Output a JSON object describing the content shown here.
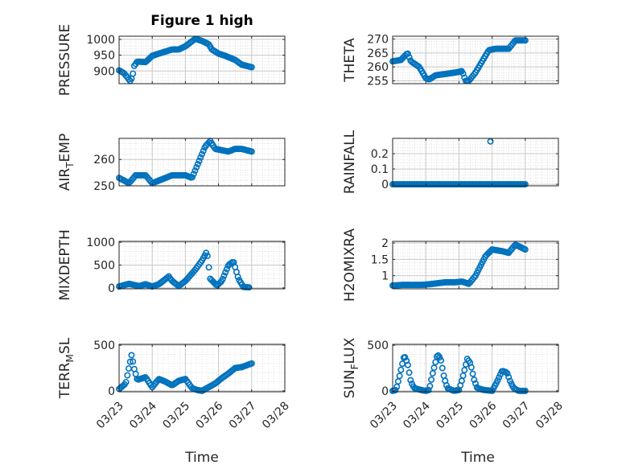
{
  "figure": {
    "title": "Figure 1 high",
    "xlabel": "Time"
  },
  "colors": {
    "marker": "#0072BD",
    "axis": "#262626",
    "grid": "#c8c8c8"
  },
  "chart_data": [
    {
      "type": "scatter",
      "ylabel": "PRESSURE",
      "ylabel_sub": null,
      "ylim": [
        860,
        1010
      ],
      "yticks": [
        900,
        950,
        1000
      ],
      "xlim": [
        0,
        5
      ],
      "xticks": [
        "03/23",
        "03/24",
        "03/25",
        "03/26",
        "03/27",
        "03/28"
      ],
      "show_xticklabels": false,
      "title": "Figure 1 high",
      "anchors": [
        [
          0,
          902
        ],
        [
          0.15,
          893
        ],
        [
          0.25,
          880
        ],
        [
          0.33,
          868
        ],
        [
          0.4,
          880
        ],
        [
          0.45,
          915
        ],
        [
          0.55,
          930
        ],
        [
          0.8,
          928
        ],
        [
          1.0,
          948
        ],
        [
          1.2,
          955
        ],
        [
          1.6,
          968
        ],
        [
          1.8,
          968
        ],
        [
          2.0,
          978
        ],
        [
          2.15,
          990
        ],
        [
          2.3,
          1002
        ],
        [
          2.5,
          995
        ],
        [
          2.7,
          985
        ],
        [
          2.8,
          968
        ],
        [
          3.0,
          955
        ],
        [
          3.2,
          948
        ],
        [
          3.5,
          935
        ],
        [
          3.7,
          920
        ],
        [
          4.0,
          912
        ]
      ]
    },
    {
      "type": "scatter",
      "ylabel": "THETA",
      "ylabel_sub": null,
      "ylim": [
        254,
        271
      ],
      "yticks": [
        255,
        260,
        265,
        270
      ],
      "xlim": [
        0,
        5
      ],
      "xticks": [
        "03/23",
        "03/24",
        "03/25",
        "03/26",
        "03/27",
        "03/28"
      ],
      "show_xticklabels": false,
      "anchors": [
        [
          0,
          262
        ],
        [
          0.25,
          262.5
        ],
        [
          0.45,
          265
        ],
        [
          0.55,
          262
        ],
        [
          0.8,
          260
        ],
        [
          1.0,
          256
        ],
        [
          1.1,
          255.5
        ],
        [
          1.3,
          257
        ],
        [
          1.6,
          257.5
        ],
        [
          1.9,
          258
        ],
        [
          2.1,
          258.5
        ],
        [
          2.2,
          255
        ],
        [
          2.3,
          255
        ],
        [
          2.5,
          258
        ],
        [
          2.7,
          262
        ],
        [
          2.9,
          266
        ],
        [
          3.1,
          266.5
        ],
        [
          3.4,
          266.5
        ],
        [
          3.5,
          266.5
        ],
        [
          3.7,
          269.5
        ],
        [
          4.0,
          269.5
        ]
      ]
    },
    {
      "type": "scatter",
      "ylabel": "AIR",
      "ylabel_sub": "T",
      "ylabel_suffix": "EMP",
      "ylim": [
        250,
        268
      ],
      "yticks": [
        250,
        260
      ],
      "xlim": [
        0,
        5
      ],
      "xticks": [
        "03/23",
        "03/24",
        "03/25",
        "03/26",
        "03/27",
        "03/28"
      ],
      "show_xticklabels": false,
      "anchors": [
        [
          0,
          253
        ],
        [
          0.3,
          251
        ],
        [
          0.5,
          254
        ],
        [
          0.8,
          254
        ],
        [
          1.0,
          251
        ],
        [
          1.2,
          252
        ],
        [
          1.6,
          254
        ],
        [
          2.0,
          254
        ],
        [
          2.2,
          253
        ],
        [
          2.4,
          259
        ],
        [
          2.6,
          265
        ],
        [
          2.75,
          267
        ],
        [
          2.9,
          264
        ],
        [
          3.3,
          263
        ],
        [
          3.5,
          264
        ],
        [
          3.7,
          264
        ],
        [
          4.0,
          263
        ]
      ]
    },
    {
      "type": "scatter",
      "ylabel": "RAINFALL",
      "ylabel_sub": null,
      "ylim": [
        -0.01,
        0.3
      ],
      "yticks": [
        0,
        0.1,
        0.2
      ],
      "xlim": [
        0,
        5
      ],
      "xticks": [
        "03/23",
        "03/24",
        "03/25",
        "03/26",
        "03/27",
        "03/28"
      ],
      "show_xticklabels": false,
      "anchors": [
        [
          0,
          0
        ],
        [
          4.0,
          0
        ]
      ],
      "extra_points": [
        [
          2.95,
          0.28
        ]
      ]
    },
    {
      "type": "scatter",
      "ylabel": "MIXDEPTH",
      "ylabel_sub": null,
      "ylim": [
        -20,
        1020
      ],
      "yticks": [
        0,
        500,
        1000
      ],
      "xlim": [
        0,
        5
      ],
      "xticks": [
        "03/23",
        "03/24",
        "03/25",
        "03/26",
        "03/27",
        "03/28"
      ],
      "show_xticklabels": false,
      "anchors": [
        [
          0,
          30
        ],
        [
          0.3,
          90
        ],
        [
          0.6,
          40
        ],
        [
          0.8,
          80
        ],
        [
          1.0,
          30
        ],
        [
          1.2,
          80
        ],
        [
          1.5,
          250
        ],
        [
          1.6,
          150
        ],
        [
          1.8,
          40
        ],
        [
          2.0,
          150
        ],
        [
          2.3,
          400
        ],
        [
          2.5,
          600
        ],
        [
          2.65,
          800
        ],
        [
          2.75,
          200
        ],
        [
          2.95,
          50
        ],
        [
          3.1,
          150
        ],
        [
          3.3,
          500
        ],
        [
          3.45,
          580
        ],
        [
          3.6,
          200
        ],
        [
          3.75,
          20
        ],
        [
          3.95,
          10
        ]
      ]
    },
    {
      "type": "scatter",
      "ylabel": "H2OMIXRA",
      "ylabel_sub": null,
      "ylim": [
        0.6,
        2.05
      ],
      "yticks": [
        1,
        1.5,
        2
      ],
      "xlim": [
        0,
        5
      ],
      "xticks": [
        "03/23",
        "03/24",
        "03/25",
        "03/26",
        "03/27",
        "03/28"
      ],
      "show_xticklabels": false,
      "anchors": [
        [
          0,
          0.7
        ],
        [
          0.3,
          0.72
        ],
        [
          0.6,
          0.72
        ],
        [
          0.9,
          0.72
        ],
        [
          1.2,
          0.75
        ],
        [
          1.6,
          0.8
        ],
        [
          1.9,
          0.8
        ],
        [
          2.1,
          0.82
        ],
        [
          2.3,
          0.75
        ],
        [
          2.5,
          1.0
        ],
        [
          2.8,
          1.6
        ],
        [
          3.0,
          1.8
        ],
        [
          3.3,
          1.75
        ],
        [
          3.5,
          1.7
        ],
        [
          3.7,
          1.95
        ],
        [
          4.0,
          1.8
        ]
      ]
    },
    {
      "type": "scatter",
      "ylabel": "TERR",
      "ylabel_sub": "M",
      "ylabel_suffix": "SL",
      "ylim": [
        -10,
        510
      ],
      "yticks": [
        0,
        500
      ],
      "xlim": [
        0,
        5
      ],
      "xticks": [
        "03/23",
        "03/24",
        "03/25",
        "03/26",
        "03/27",
        "03/28"
      ],
      "show_xticklabels": true,
      "anchors": [
        [
          0,
          20
        ],
        [
          0.2,
          80
        ],
        [
          0.3,
          260
        ],
        [
          0.38,
          400
        ],
        [
          0.45,
          250
        ],
        [
          0.55,
          120
        ],
        [
          0.8,
          150
        ],
        [
          1.0,
          40
        ],
        [
          1.2,
          130
        ],
        [
          1.4,
          100
        ],
        [
          1.6,
          60
        ],
        [
          1.8,
          110
        ],
        [
          2.0,
          130
        ],
        [
          2.2,
          30
        ],
        [
          2.35,
          10
        ],
        [
          2.5,
          0
        ],
        [
          2.7,
          40
        ],
        [
          2.9,
          80
        ],
        [
          3.1,
          140
        ],
        [
          3.3,
          190
        ],
        [
          3.5,
          250
        ],
        [
          3.7,
          260
        ],
        [
          4.0,
          300
        ]
      ]
    },
    {
      "type": "scatter",
      "ylabel": "SUN",
      "ylabel_sub": "F",
      "ylabel_suffix": "LUX",
      "ylim": [
        -10,
        510
      ],
      "yticks": [
        0,
        500
      ],
      "xlim": [
        0,
        5
      ],
      "xticks": [
        "03/23",
        "03/24",
        "03/25",
        "03/26",
        "03/27",
        "03/28"
      ],
      "show_xticklabels": true,
      "anchors": [
        [
          0,
          0
        ],
        [
          0.1,
          10
        ],
        [
          0.2,
          150
        ],
        [
          0.35,
          390
        ],
        [
          0.45,
          300
        ],
        [
          0.55,
          100
        ],
        [
          0.65,
          30
        ],
        [
          0.85,
          10
        ],
        [
          1.0,
          0
        ],
        [
          1.1,
          10
        ],
        [
          1.2,
          180
        ],
        [
          1.35,
          400
        ],
        [
          1.45,
          350
        ],
        [
          1.55,
          150
        ],
        [
          1.65,
          30
        ],
        [
          1.85,
          0
        ],
        [
          2.0,
          10
        ],
        [
          2.1,
          130
        ],
        [
          2.25,
          350
        ],
        [
          2.35,
          300
        ],
        [
          2.45,
          130
        ],
        [
          2.55,
          30
        ],
        [
          2.75,
          10
        ],
        [
          3.0,
          0
        ],
        [
          3.15,
          100
        ],
        [
          3.3,
          220
        ],
        [
          3.45,
          200
        ],
        [
          3.55,
          100
        ],
        [
          3.65,
          30
        ],
        [
          3.8,
          0
        ],
        [
          4.0,
          0
        ]
      ]
    }
  ]
}
